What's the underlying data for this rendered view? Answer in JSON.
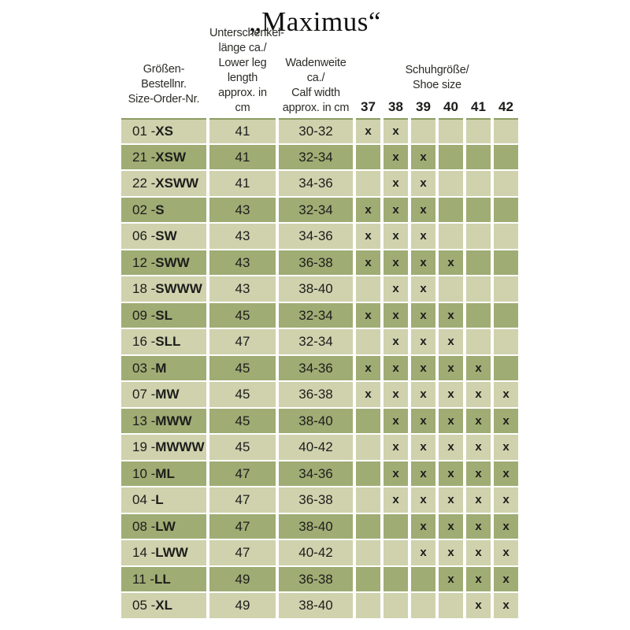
{
  "title": "„Maximus“",
  "colors": {
    "row_light": "#cfd2ad",
    "row_dark": "#9fac74",
    "top_edge": "#8d9d62"
  },
  "table": {
    "headers": {
      "size_order": "Größen-Bestellnr.\nSize-Order-Nr.",
      "lower_leg": "Unterschenkel-\nlänge ca./\nLower leg length\napprox. in cm",
      "calf_width": "Wadenweite ca./\nCalf width\napprox. in cm",
      "shoe_size_group": "Schuhgröße/\nShoe size"
    },
    "shoe_sizes": [
      "37",
      "38",
      "39",
      "40",
      "41",
      "42"
    ],
    "mark": "x",
    "label_separator": " - ",
    "rows": [
      {
        "order": "01",
        "size": "XS",
        "leg": "41",
        "calf": "30-32",
        "shoes": [
          1,
          1,
          0,
          0,
          0,
          0
        ]
      },
      {
        "order": "21",
        "size": "XSW",
        "leg": "41",
        "calf": "32-34",
        "shoes": [
          0,
          1,
          1,
          0,
          0,
          0
        ]
      },
      {
        "order": "22",
        "size": "XSWW",
        "leg": "41",
        "calf": "34-36",
        "shoes": [
          0,
          1,
          1,
          0,
          0,
          0
        ]
      },
      {
        "order": "02",
        "size": "S",
        "leg": "43",
        "calf": "32-34",
        "shoes": [
          1,
          1,
          1,
          0,
          0,
          0
        ]
      },
      {
        "order": "06",
        "size": "SW",
        "leg": "43",
        "calf": "34-36",
        "shoes": [
          1,
          1,
          1,
          0,
          0,
          0
        ]
      },
      {
        "order": "12",
        "size": "SWW",
        "leg": "43",
        "calf": "36-38",
        "shoes": [
          1,
          1,
          1,
          1,
          0,
          0
        ]
      },
      {
        "order": "18",
        "size": "SWWW",
        "leg": "43",
        "calf": "38-40",
        "shoes": [
          0,
          1,
          1,
          0,
          0,
          0
        ]
      },
      {
        "order": "09",
        "size": "SL",
        "leg": "45",
        "calf": "32-34",
        "shoes": [
          1,
          1,
          1,
          1,
          0,
          0
        ]
      },
      {
        "order": "16",
        "size": "SLL",
        "leg": "47",
        "calf": "32-34",
        "shoes": [
          0,
          1,
          1,
          1,
          0,
          0
        ]
      },
      {
        "order": "03",
        "size": "M",
        "leg": "45",
        "calf": "34-36",
        "shoes": [
          1,
          1,
          1,
          1,
          1,
          0
        ]
      },
      {
        "order": "07",
        "size": "MW",
        "leg": "45",
        "calf": "36-38",
        "shoes": [
          1,
          1,
          1,
          1,
          1,
          1
        ]
      },
      {
        "order": "13",
        "size": "MWW",
        "leg": "45",
        "calf": "38-40",
        "shoes": [
          0,
          1,
          1,
          1,
          1,
          1
        ]
      },
      {
        "order": "19",
        "size": "MWWW",
        "leg": "45",
        "calf": "40-42",
        "shoes": [
          0,
          1,
          1,
          1,
          1,
          1
        ]
      },
      {
        "order": "10",
        "size": "ML",
        "leg": "47",
        "calf": "34-36",
        "shoes": [
          0,
          1,
          1,
          1,
          1,
          1
        ]
      },
      {
        "order": "04",
        "size": "L",
        "leg": "47",
        "calf": "36-38",
        "shoes": [
          0,
          1,
          1,
          1,
          1,
          1
        ]
      },
      {
        "order": "08",
        "size": "LW",
        "leg": "47",
        "calf": "38-40",
        "shoes": [
          0,
          0,
          1,
          1,
          1,
          1
        ]
      },
      {
        "order": "14",
        "size": "LWW",
        "leg": "47",
        "calf": "40-42",
        "shoes": [
          0,
          0,
          1,
          1,
          1,
          1
        ]
      },
      {
        "order": "11",
        "size": "LL",
        "leg": "49",
        "calf": "36-38",
        "shoes": [
          0,
          0,
          0,
          1,
          1,
          1
        ]
      },
      {
        "order": "05",
        "size": "XL",
        "leg": "49",
        "calf": "38-40",
        "shoes": [
          0,
          0,
          0,
          0,
          1,
          1
        ]
      }
    ]
  }
}
